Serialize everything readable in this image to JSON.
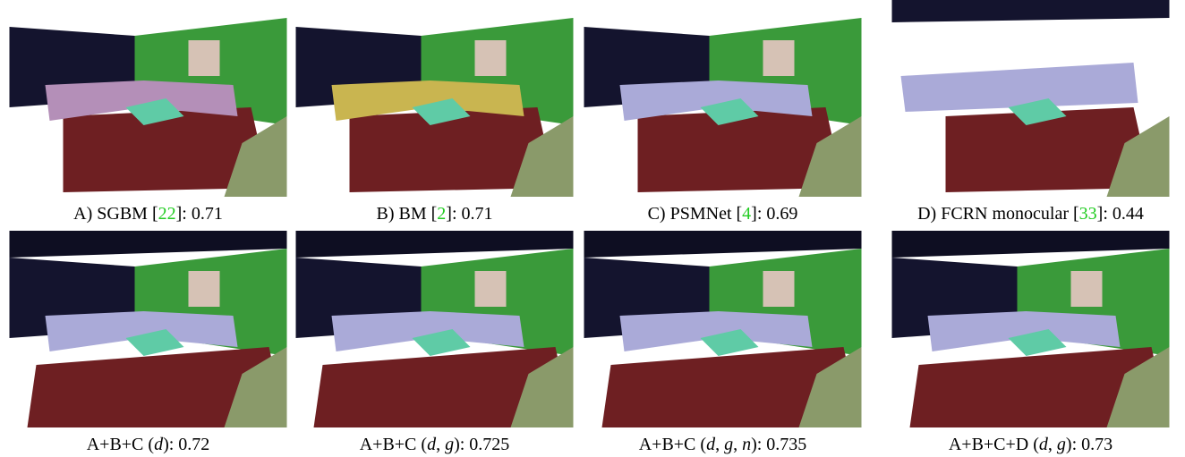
{
  "figure": {
    "panels": [
      {
        "caption": [
          {
            "text": "A) SGBM [",
            "kind": "plain"
          },
          {
            "text": "22",
            "kind": "cite"
          },
          {
            "text": "]: 0.71",
            "kind": "plain"
          }
        ]
      },
      {
        "caption": [
          {
            "text": "B) BM [",
            "kind": "plain"
          },
          {
            "text": "2",
            "kind": "cite"
          },
          {
            "text": "]: 0.71",
            "kind": "plain"
          }
        ]
      },
      {
        "caption": [
          {
            "text": "C) PSMNet [",
            "kind": "plain"
          },
          {
            "text": "4",
            "kind": "cite"
          },
          {
            "text": "]: 0.69",
            "kind": "plain"
          }
        ]
      },
      {
        "caption": [
          {
            "text": "D) FCRN monocular [",
            "kind": "plain"
          },
          {
            "text": "33",
            "kind": "cite"
          },
          {
            "text": "]: 0.44",
            "kind": "plain"
          }
        ]
      },
      {
        "caption": [
          {
            "text": "A+B+C (",
            "kind": "plain"
          },
          {
            "text": "d",
            "kind": "var"
          },
          {
            "text": "): 0.72",
            "kind": "plain"
          }
        ]
      },
      {
        "caption": [
          {
            "text": "A+B+C (",
            "kind": "plain"
          },
          {
            "text": "d",
            "kind": "var"
          },
          {
            "text": ", ",
            "kind": "plain"
          },
          {
            "text": "g",
            "kind": "var"
          },
          {
            "text": "): 0.725",
            "kind": "plain"
          }
        ]
      },
      {
        "caption": [
          {
            "text": "A+B+C (",
            "kind": "plain"
          },
          {
            "text": "d",
            "kind": "var"
          },
          {
            "text": ", ",
            "kind": "plain"
          },
          {
            "text": "g",
            "kind": "var"
          },
          {
            "text": ", ",
            "kind": "plain"
          },
          {
            "text": "n",
            "kind": "var"
          },
          {
            "text": "): 0.735",
            "kind": "plain"
          }
        ]
      },
      {
        "caption": [
          {
            "text": "A+B+C+D (",
            "kind": "plain"
          },
          {
            "text": "d",
            "kind": "var"
          },
          {
            "text": ", ",
            "kind": "plain"
          },
          {
            "text": "g",
            "kind": "var"
          },
          {
            "text": "): 0.73",
            "kind": "plain"
          }
        ]
      }
    ]
  }
}
